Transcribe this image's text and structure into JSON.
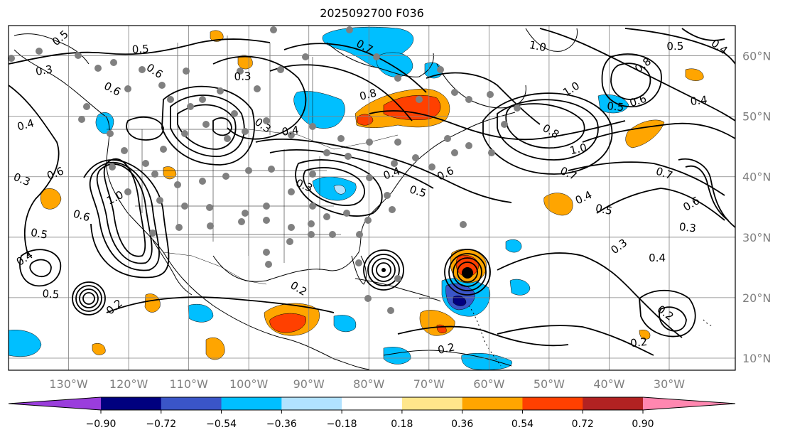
{
  "title": "2025092700 F036",
  "map": {
    "lon_min": -140,
    "lon_max": -19,
    "lat_min": 8,
    "lat_max": 65,
    "lon_ticks": [
      {
        "v": -130,
        "label": "130°W"
      },
      {
        "v": -120,
        "label": "120°W"
      },
      {
        "v": -110,
        "label": "110°W"
      },
      {
        "v": -100,
        "label": "100°W"
      },
      {
        "v": -90,
        "label": "90°W"
      },
      {
        "v": -80,
        "label": "80°W"
      },
      {
        "v": -70,
        "label": "70°W"
      },
      {
        "v": -60,
        "label": "60°W"
      },
      {
        "v": -50,
        "label": "50°W"
      },
      {
        "v": -40,
        "label": "40°W"
      },
      {
        "v": -30,
        "label": "30°W"
      }
    ],
    "lat_ticks": [
      {
        "v": 60,
        "label": "60°N"
      },
      {
        "v": 50,
        "label": "50°N"
      },
      {
        "v": 40,
        "label": "40°N"
      },
      {
        "v": 30,
        "label": "30°N"
      },
      {
        "v": 20,
        "label": "20°N"
      },
      {
        "v": 10,
        "label": "10°N"
      }
    ],
    "contour_labels": [
      {
        "lon": -131,
        "lat": 62.5,
        "text": "0.5"
      },
      {
        "lon": -118,
        "lat": 60.5,
        "text": "0.5"
      },
      {
        "lon": -116,
        "lat": 57,
        "text": "0.6"
      },
      {
        "lon": -134,
        "lat": 57,
        "text": "0.3"
      },
      {
        "lon": -123,
        "lat": 54,
        "text": "0.6"
      },
      {
        "lon": -137,
        "lat": 48,
        "text": "0.4"
      },
      {
        "lon": -138,
        "lat": 39,
        "text": "0.3"
      },
      {
        "lon": -132,
        "lat": 40,
        "text": "0.6"
      },
      {
        "lon": -128,
        "lat": 33,
        "text": "0.6"
      },
      {
        "lon": -122,
        "lat": 36,
        "text": "1.0"
      },
      {
        "lon": -135,
        "lat": 30,
        "text": "0.5"
      },
      {
        "lon": -137,
        "lat": 26,
        "text": "0.4"
      },
      {
        "lon": -133,
        "lat": 20,
        "text": "0.5"
      },
      {
        "lon": -122,
        "lat": 18,
        "text": "0.2"
      },
      {
        "lon": -101,
        "lat": 56,
        "text": "0.3"
      },
      {
        "lon": -98,
        "lat": 48,
        "text": "0.3"
      },
      {
        "lon": -93,
        "lat": 47,
        "text": "0.4"
      },
      {
        "lon": -81,
        "lat": 61,
        "text": "0.7"
      },
      {
        "lon": -80,
        "lat": 53,
        "text": "0.8"
      },
      {
        "lon": -91,
        "lat": 38,
        "text": "0.3"
      },
      {
        "lon": -76,
        "lat": 40,
        "text": "0.4"
      },
      {
        "lon": -72,
        "lat": 37,
        "text": "0.5"
      },
      {
        "lon": -67,
        "lat": 40,
        "text": "0.6"
      },
      {
        "lon": -52,
        "lat": 61,
        "text": "1.0"
      },
      {
        "lon": -46,
        "lat": 54,
        "text": "1.0"
      },
      {
        "lon": -39,
        "lat": 51,
        "text": "0.5"
      },
      {
        "lon": -34,
        "lat": 58,
        "text": "0.8"
      },
      {
        "lon": -29,
        "lat": 61,
        "text": "0.5"
      },
      {
        "lon": -22,
        "lat": 61,
        "text": "0.4"
      },
      {
        "lon": -25,
        "lat": 52,
        "text": "0.4"
      },
      {
        "lon": -50,
        "lat": 47,
        "text": "0.8"
      },
      {
        "lon": -45,
        "lat": 44,
        "text": "1.0"
      },
      {
        "lon": -47,
        "lat": 40,
        "text": "0.7"
      },
      {
        "lon": -35,
        "lat": 52,
        "text": "0.6"
      },
      {
        "lon": -31,
        "lat": 40,
        "text": "0.7"
      },
      {
        "lon": -44,
        "lat": 36,
        "text": "0.4"
      },
      {
        "lon": -41,
        "lat": 34,
        "text": "0.5"
      },
      {
        "lon": -26,
        "lat": 35,
        "text": "0.6"
      },
      {
        "lon": -27,
        "lat": 31,
        "text": "0.3"
      },
      {
        "lon": -38,
        "lat": 28,
        "text": "0.3"
      },
      {
        "lon": -32,
        "lat": 26,
        "text": "0.4"
      },
      {
        "lon": -31,
        "lat": 17,
        "text": "0.2"
      },
      {
        "lon": -35,
        "lat": 12,
        "text": "0.2"
      },
      {
        "lon": -92,
        "lat": 21,
        "text": "0.2"
      },
      {
        "lon": -67,
        "lat": 11,
        "text": "0.2"
      }
    ]
  },
  "colorbar": {
    "colors": [
      "#9a3ddc",
      "#00007f",
      "#3a55c8",
      "#00bfff",
      "#b1e2ff",
      "#ffffff",
      "#ffe68b",
      "#ffa500",
      "#ff4000",
      "#b22222",
      "#ff87b0"
    ],
    "tick_labels": [
      "−0.90",
      "−0.72",
      "−0.54",
      "−0.36",
      "−0.18",
      "0.18",
      "0.36",
      "0.54",
      "0.72",
      "0.90"
    ]
  }
}
